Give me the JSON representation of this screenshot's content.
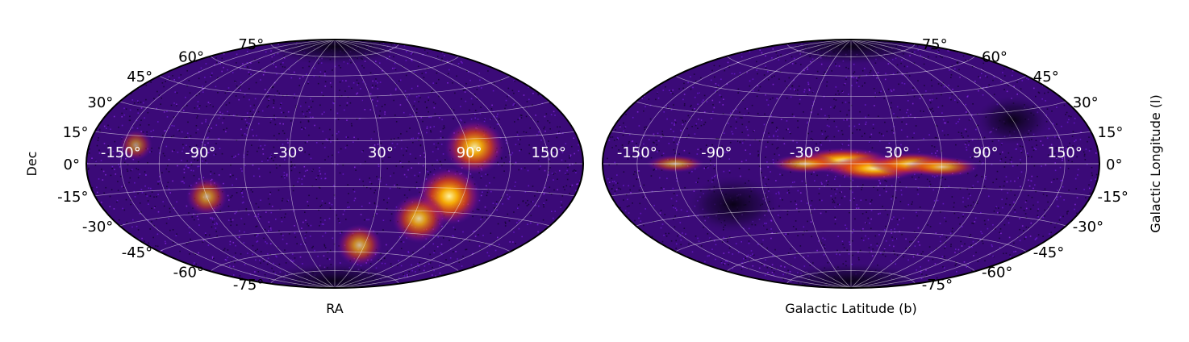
{
  "chart_data": [
    {
      "type": "heatmap",
      "projection": "aitoff-hammer",
      "frame": "equatorial",
      "xlabel": "RA",
      "ylabel": "Dec",
      "xtick_labels": [
        "-150°",
        "-90°",
        "-30°",
        "30°",
        "90°",
        "150°"
      ],
      "xticks": [
        -150,
        -90,
        -30,
        30,
        90,
        150
      ],
      "ytick_labels": [
        "75°",
        "60°",
        "45°",
        "30°",
        "15°",
        "0°",
        "-15°",
        "-30°",
        "-45°",
        "-60°",
        "-75°"
      ],
      "yticks": [
        75,
        60,
        45,
        30,
        15,
        0,
        -15,
        -30,
        -45,
        -60,
        -75
      ],
      "ytick_side": "left",
      "xlim": [
        -180,
        180
      ],
      "ylim": [
        -90,
        90
      ],
      "grid": true,
      "colormap": "inferno-like",
      "background_color": "#3b0a78",
      "hotspots": [
        {
          "lon": 95,
          "lat": 10,
          "intensity": 0.9
        },
        {
          "lon": 80,
          "lat": -20,
          "intensity": 1.0
        },
        {
          "lon": 65,
          "lat": -35,
          "intensity": 0.75
        },
        {
          "lon": 25,
          "lat": -55,
          "intensity": 0.55
        },
        {
          "lon": -90,
          "lat": -20,
          "intensity": 0.45
        },
        {
          "lon": -140,
          "lat": 10,
          "intensity": 0.25
        }
      ]
    },
    {
      "type": "heatmap",
      "projection": "aitoff-hammer",
      "frame": "galactic",
      "xlabel": "Galactic Latitude (b)",
      "ylabel": "Galactic Longitude (l)",
      "xtick_labels": [
        "-150°",
        "-90°",
        "-30°",
        "30°",
        "90°",
        "150°"
      ],
      "xticks": [
        -150,
        -90,
        -30,
        30,
        90,
        150
      ],
      "ytick_labels": [
        "75°",
        "60°",
        "45°",
        "30°",
        "15°",
        "0°",
        "-15°",
        "-30°",
        "-45°",
        "-60°",
        "-75°"
      ],
      "yticks": [
        75,
        60,
        45,
        30,
        15,
        0,
        -15,
        -30,
        -45,
        -60,
        -75
      ],
      "ytick_side": "right",
      "xlim": [
        -180,
        180
      ],
      "ylim": [
        -90,
        90
      ],
      "grid": true,
      "colormap": "inferno-like",
      "background_color": "#3b0a78",
      "hotspots": [
        {
          "lon": -5,
          "lat": 2,
          "intensity": 1.0
        },
        {
          "lon": 15,
          "lat": -3,
          "intensity": 0.95
        },
        {
          "lon": 40,
          "lat": 0,
          "intensity": 0.8
        },
        {
          "lon": 60,
          "lat": -2,
          "intensity": 0.6
        },
        {
          "lon": -30,
          "lat": 0,
          "intensity": 0.5
        },
        {
          "lon": -120,
          "lat": 0,
          "intensity": 0.35
        }
      ]
    }
  ]
}
